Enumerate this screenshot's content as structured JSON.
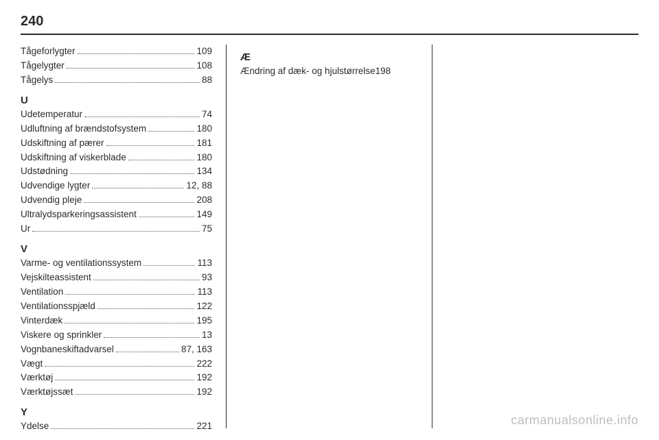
{
  "pageNumber": "240",
  "watermark": "carmanualsonline.info",
  "col1": {
    "preEntries": [
      {
        "label": "Tågeforlygter",
        "page": "109"
      },
      {
        "label": "Tågelygter",
        "page": "108"
      },
      {
        "label": "Tågelys",
        "page": "88"
      }
    ],
    "sections": [
      {
        "letter": "U",
        "entries": [
          {
            "label": "Udetemperatur",
            "page": "74"
          },
          {
            "label": "Udluftning af brændstofsystem",
            "page": "180",
            "tightDots": true
          },
          {
            "label": "Udskiftning af pærer",
            "page": "181"
          },
          {
            "label": "Udskiftning af viskerblade",
            "page": "180"
          },
          {
            "label": "Udstødning",
            "page": "134"
          },
          {
            "label": "Udvendige lygter",
            "page": "12, 88"
          },
          {
            "label": "Udvendig pleje",
            "page": "208"
          },
          {
            "label": "Ultralydsparkeringsassistent",
            "page": "149"
          },
          {
            "label": "Ur",
            "page": "75"
          }
        ]
      },
      {
        "letter": "V",
        "entries": [
          {
            "label": "Varme- og ventilationssystem",
            "page": "113",
            "tightDots": true
          },
          {
            "label": "Vejskilteassistent",
            "page": "93"
          },
          {
            "label": "Ventilation",
            "page": "113"
          },
          {
            "label": "Ventilationsspjæld",
            "page": "122"
          },
          {
            "label": "Vinterdæk",
            "page": "195"
          },
          {
            "label": "Viskere og sprinkler",
            "page": "13"
          },
          {
            "label": "Vognbaneskiftadvarsel",
            "page": "87, 163"
          },
          {
            "label": "Vægt",
            "page": "222"
          },
          {
            "label": "Værktøj",
            "page": "192"
          },
          {
            "label": "Værktøjssæt",
            "page": "192"
          }
        ]
      },
      {
        "letter": "Y",
        "entries": [
          {
            "label": "Ydelse",
            "page": "221"
          }
        ]
      }
    ]
  },
  "col2": {
    "sections": [
      {
        "letter": "Æ",
        "entries": [
          {
            "label": "Ændring af dæk- og hjulstørrelse",
            "page": "198",
            "noDots": true
          }
        ]
      }
    ]
  }
}
